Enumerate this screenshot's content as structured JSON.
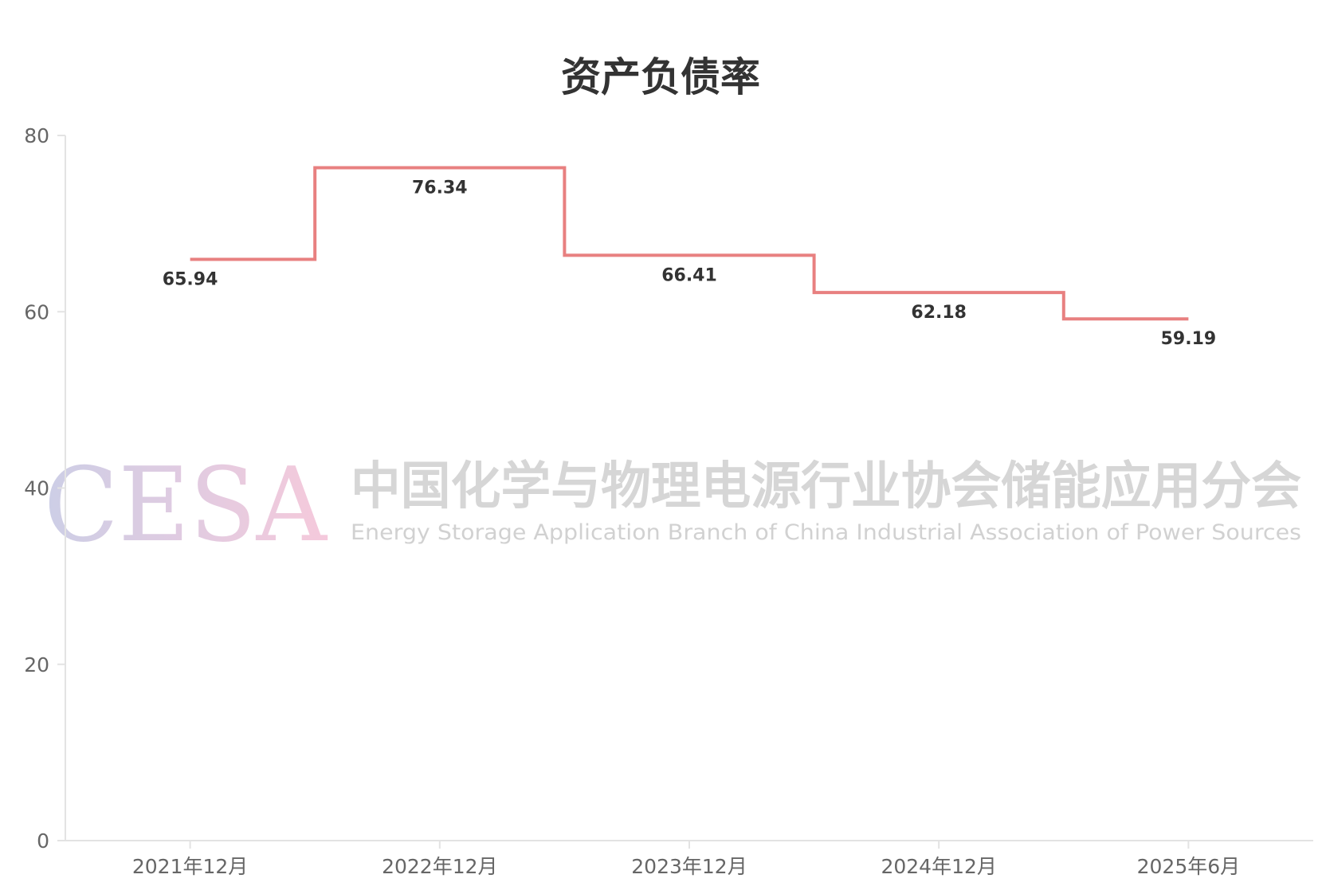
{
  "chart_data": {
    "type": "line",
    "step": true,
    "title": "资产负债率",
    "categories": [
      "2021年12月",
      "2022年12月",
      "2023年12月",
      "2024年12月",
      "2025年6月"
    ],
    "values": [
      65.94,
      76.34,
      66.41,
      62.18,
      59.19
    ],
    "ylim": [
      0,
      80
    ],
    "yticks": [
      "0",
      "20",
      "40",
      "60",
      "80"
    ],
    "xlabel": "",
    "ylabel": "",
    "grid": false,
    "legend": "none",
    "line_color": "#e88080"
  },
  "watermark": {
    "logo": "CESA",
    "name_cn": "中国化学与物理电源行业协会储能应用分会",
    "name_en": "Energy Storage Application Branch of China Industrial Association of Power Sources"
  }
}
